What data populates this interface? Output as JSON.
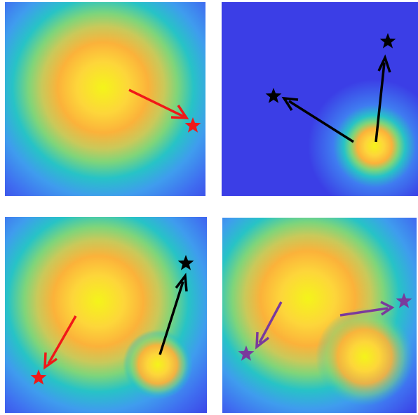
{
  "colors": {
    "field_low": "#3b3ee6",
    "field_mid_blue": "#3f7cf0",
    "field_cyan": "#27c3c6",
    "field_green": "#7fd57a",
    "field_orange": "#fbb23a",
    "field_peak": "#f4f41a",
    "arrow_red": "#f01818",
    "arrow_black": "#000000",
    "arrow_purple": "#7a3a9c"
  },
  "panels": [
    {
      "name": "top-left",
      "arrows": [
        {
          "color": "arrow_red",
          "marker": "star"
        }
      ]
    },
    {
      "name": "top-right",
      "arrows": [
        {
          "color": "arrow_black",
          "marker": "star"
        },
        {
          "color": "arrow_black",
          "marker": "star"
        }
      ]
    },
    {
      "name": "bottom-left",
      "arrows": [
        {
          "color": "arrow_red",
          "marker": "star"
        },
        {
          "color": "arrow_black",
          "marker": "star"
        }
      ]
    },
    {
      "name": "bottom-right",
      "arrows": [
        {
          "color": "arrow_purple",
          "marker": "star"
        },
        {
          "color": "arrow_purple",
          "marker": "star"
        }
      ]
    }
  ]
}
